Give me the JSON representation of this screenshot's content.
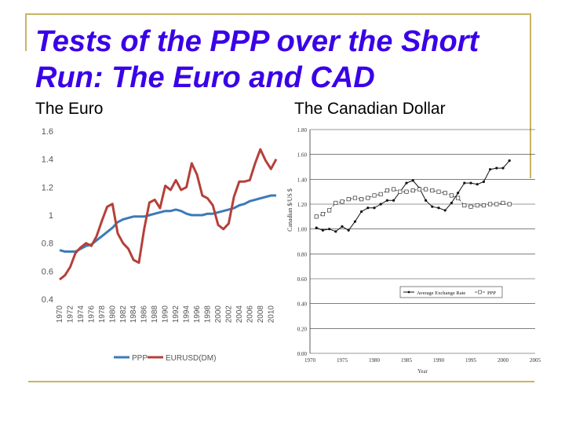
{
  "slide": {
    "title": "Tests of the PPP over the Short Run: The Euro and CAD",
    "left_heading": "The Euro",
    "right_heading": "The Canadian Dollar"
  },
  "colors": {
    "title": "#3a00e8",
    "frame": "#c8b560",
    "ppp_euro": "#3b7ab8",
    "eurusd": "#b5403a"
  },
  "chart_data": [
    {
      "type": "line",
      "ylim": [
        0.4,
        1.6
      ],
      "y_ticks": [
        "0.4",
        "0.6",
        "0.8",
        "1",
        "1.2",
        "1.4",
        "1.6"
      ],
      "x_ticks": [
        "1970",
        "1972",
        "1974",
        "1976",
        "1978",
        "1980",
        "1982",
        "1984",
        "1986",
        "1988",
        "1990",
        "1992",
        "1994",
        "1996",
        "1998",
        "2000",
        "2002",
        "2004",
        "2006",
        "2008",
        "2010"
      ],
      "series": [
        {
          "name": "PPP",
          "x": [
            1970,
            1971,
            1972,
            1973,
            1974,
            1975,
            1976,
            1977,
            1978,
            1979,
            1980,
            1981,
            1982,
            1983,
            1984,
            1985,
            1986,
            1987,
            1988,
            1989,
            1990,
            1991,
            1992,
            1993,
            1994,
            1995,
            1996,
            1997,
            1998,
            1999,
            2000,
            2001,
            2002,
            2003,
            2004,
            2005,
            2006,
            2007,
            2008,
            2009,
            2010,
            2011
          ],
          "values": [
            0.75,
            0.74,
            0.74,
            0.74,
            0.76,
            0.78,
            0.79,
            0.82,
            0.85,
            0.88,
            0.91,
            0.95,
            0.97,
            0.98,
            0.99,
            0.99,
            0.99,
            1.0,
            1.01,
            1.02,
            1.03,
            1.03,
            1.04,
            1.03,
            1.01,
            1.0,
            1.0,
            1.0,
            1.01,
            1.01,
            1.02,
            1.03,
            1.04,
            1.05,
            1.07,
            1.08,
            1.1,
            1.11,
            1.12,
            1.13,
            1.14,
            1.14
          ]
        },
        {
          "name": "EURUSD(DM)",
          "x": [
            1970,
            1971,
            1972,
            1973,
            1974,
            1975,
            1976,
            1977,
            1978,
            1979,
            1980,
            1981,
            1982,
            1983,
            1984,
            1985,
            1986,
            1987,
            1988,
            1989,
            1990,
            1991,
            1992,
            1993,
            1994,
            1995,
            1996,
            1997,
            1998,
            1999,
            2000,
            2001,
            2002,
            2003,
            2004,
            2005,
            2006,
            2007,
            2008,
            2009,
            2010,
            2011
          ],
          "values": [
            0.54,
            0.57,
            0.63,
            0.73,
            0.77,
            0.8,
            0.78,
            0.85,
            0.96,
            1.06,
            1.08,
            0.87,
            0.8,
            0.76,
            0.68,
            0.66,
            0.9,
            1.09,
            1.11,
            1.05,
            1.21,
            1.18,
            1.25,
            1.18,
            1.2,
            1.37,
            1.29,
            1.14,
            1.12,
            1.07,
            0.93,
            0.9,
            0.94,
            1.13,
            1.24,
            1.24,
            1.25,
            1.37,
            1.47,
            1.39,
            1.33,
            1.4
          ]
        }
      ]
    },
    {
      "type": "line",
      "ylim": [
        0.0,
        1.8
      ],
      "xlim": [
        1970,
        2005
      ],
      "y_ticks": [
        "0.00",
        "0.20",
        "0.40",
        "0.60",
        "0.80",
        "1.00",
        "1.20",
        "1.40",
        "1.60",
        "1.80"
      ],
      "x_ticks": [
        "1970",
        "1975",
        "1980",
        "1985",
        "1990",
        "1995",
        "2000",
        "2005"
      ],
      "ylabel": "Canadian $/US $",
      "xlabel": "Year",
      "legend": "bottom-right",
      "series": [
        {
          "name": "Average Exchange Rate",
          "x": [
            1971,
            1972,
            1973,
            1974,
            1975,
            1976,
            1977,
            1978,
            1979,
            1980,
            1981,
            1982,
            1983,
            1984,
            1985,
            1986,
            1987,
            1988,
            1989,
            1990,
            1991,
            1992,
            1993,
            1994,
            1995,
            1996,
            1997,
            1998,
            1999,
            2000,
            2001
          ],
          "values": [
            1.01,
            0.99,
            1.0,
            0.98,
            1.02,
            0.99,
            1.06,
            1.14,
            1.17,
            1.17,
            1.2,
            1.23,
            1.23,
            1.3,
            1.37,
            1.39,
            1.33,
            1.23,
            1.18,
            1.17,
            1.15,
            1.21,
            1.29,
            1.37,
            1.37,
            1.36,
            1.38,
            1.48,
            1.49,
            1.49,
            1.55
          ]
        },
        {
          "name": "PPP",
          "x": [
            1971,
            1972,
            1973,
            1974,
            1975,
            1976,
            1977,
            1978,
            1979,
            1980,
            1981,
            1982,
            1983,
            1984,
            1985,
            1986,
            1987,
            1988,
            1989,
            1990,
            1991,
            1992,
            1993,
            1994,
            1995,
            1996,
            1997,
            1998,
            1999,
            2000,
            2001
          ],
          "values": [
            1.1,
            1.12,
            1.15,
            1.21,
            1.22,
            1.24,
            1.25,
            1.24,
            1.25,
            1.27,
            1.28,
            1.31,
            1.32,
            1.3,
            1.3,
            1.31,
            1.32,
            1.32,
            1.31,
            1.3,
            1.29,
            1.27,
            1.25,
            1.19,
            1.18,
            1.19,
            1.19,
            1.2,
            1.2,
            1.21,
            1.2
          ]
        }
      ]
    }
  ]
}
